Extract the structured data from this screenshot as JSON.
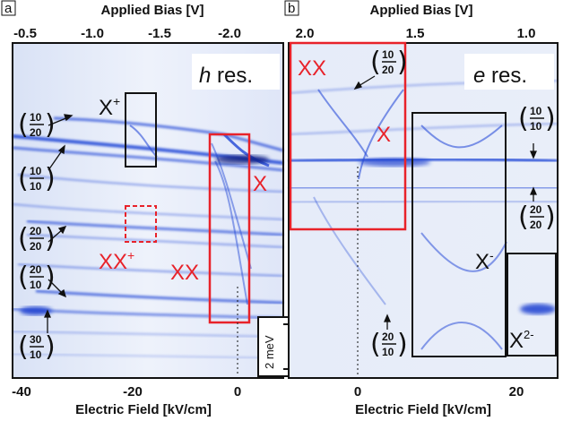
{
  "figure": {
    "panel_a": {
      "letter": "a",
      "top_axis_title": "Applied Bias [V]",
      "top_ticks": [
        "-0.5",
        "-1.0",
        "-1.5",
        "-2.0"
      ],
      "bottom_axis_title": "Electric Field [kV/cm]",
      "bottom_ticks": [
        "-40",
        "-20",
        "0"
      ],
      "resonance": "h",
      "resonance_suffix": " res.",
      "labels": {
        "x_plus": "X",
        "x_plus_sup": "+",
        "xx_plus": "XX",
        "xx_plus_sup": "+",
        "xx": "XX",
        "x": "X"
      },
      "states": [
        {
          "top": "10",
          "bottom": "20"
        },
        {
          "top": "10",
          "bottom": "10"
        },
        {
          "top": "20",
          "bottom": "20"
        },
        {
          "top": "20",
          "bottom": "10"
        },
        {
          "top": "30",
          "bottom": "10"
        }
      ],
      "scale_bar": "2 meV"
    },
    "panel_b": {
      "letter": "b",
      "top_axis_title": "Applied Bias [V]",
      "top_ticks": [
        "2.0",
        "1.5",
        "1.0"
      ],
      "bottom_axis_title": "Electric Field [kV/cm]",
      "bottom_ticks": [
        "0",
        "20"
      ],
      "resonance": "e",
      "resonance_suffix": " res.",
      "labels": {
        "xx": "XX",
        "x": "X",
        "x_minus": "X",
        "x_minus_sup": "-",
        "x_2minus": "X",
        "x_2minus_sup": "2-"
      },
      "states": [
        {
          "top": "10",
          "bottom": "20"
        },
        {
          "top": "10",
          "bottom": "10"
        },
        {
          "top": "20",
          "bottom": "20"
        },
        {
          "top": "20",
          "bottom": "10"
        }
      ]
    },
    "colors": {
      "spectra": "#2b4fd8",
      "background": "#e9eef9",
      "highlight_red": "#e8222a",
      "frame": "#111111"
    }
  }
}
